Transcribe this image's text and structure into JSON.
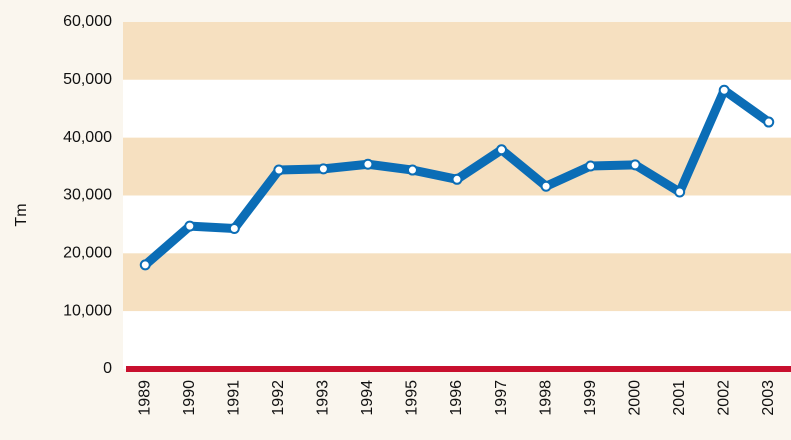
{
  "chart_data": {
    "type": "line",
    "y_label": "Tm",
    "categories": [
      "1989",
      "1990",
      "1991",
      "1992",
      "1993",
      "1994",
      "1995",
      "1996",
      "1997",
      "1998",
      "1999",
      "2000",
      "2001",
      "2002",
      "2003"
    ],
    "series": [
      {
        "name": "Tm",
        "color": "#0b6db6",
        "values": [
          18000,
          24700,
          24300,
          34400,
          34600,
          35400,
          34400,
          32800,
          37900,
          31600,
          35100,
          35300,
          30600,
          48200,
          42700
        ]
      }
    ],
    "ylim": [
      0,
      60000
    ],
    "yticks": [
      0,
      {
        "value": 10000,
        "label": "10,000"
      },
      {
        "value": 20000,
        "label": "20,000"
      },
      {
        "value": 30000,
        "label": "30,000"
      },
      {
        "value": 40000,
        "label": "40,000"
      },
      {
        "value": 50000,
        "label": "50,000"
      },
      {
        "value": 60000,
        "label": "60,000"
      }
    ],
    "band_color": "#f6e0c0",
    "baseline_color": "#c8102e"
  }
}
